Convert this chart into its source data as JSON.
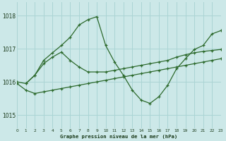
{
  "title": "Graphe pression niveau de la mer (hPa)",
  "bg_color": "#cce8e8",
  "grid_color": "#aad4d4",
  "line_color": "#2d6a2d",
  "xlim": [
    0,
    23
  ],
  "ylim": [
    1014.6,
    1018.4
  ],
  "yticks": [
    1015,
    1016,
    1017,
    1018
  ],
  "xticks": [
    0,
    1,
    2,
    3,
    4,
    5,
    6,
    7,
    8,
    9,
    10,
    11,
    12,
    13,
    14,
    15,
    16,
    17,
    18,
    19,
    20,
    21,
    22,
    23
  ],
  "line1_x": [
    0,
    1,
    2,
    3,
    4,
    5,
    6,
    7,
    8,
    9,
    10,
    11,
    12,
    13,
    14,
    15,
    16,
    17,
    18,
    19,
    20,
    21,
    22,
    23
  ],
  "line1_y": [
    1015.95,
    1015.75,
    1015.65,
    1015.7,
    1015.75,
    1015.8,
    1015.85,
    1015.9,
    1015.95,
    1016.0,
    1016.05,
    1016.1,
    1016.15,
    1016.2,
    1016.25,
    1016.3,
    1016.35,
    1016.4,
    1016.45,
    1016.5,
    1016.55,
    1016.6,
    1016.65,
    1016.7
  ],
  "line2_x": [
    0,
    1,
    2,
    3,
    4,
    5,
    6,
    7,
    8,
    9,
    10,
    11,
    12,
    13,
    14,
    15,
    16,
    17,
    18,
    19,
    20,
    21,
    22,
    23
  ],
  "line2_y": [
    1016.0,
    1015.95,
    1016.2,
    1016.55,
    1016.75,
    1016.9,
    1016.65,
    1016.45,
    1016.3,
    1016.3,
    1016.3,
    1016.35,
    1016.4,
    1016.45,
    1016.5,
    1016.55,
    1016.6,
    1016.65,
    1016.75,
    1016.82,
    1016.88,
    1016.92,
    1016.95,
    1016.98
  ],
  "line3_x": [
    1,
    2,
    3,
    4,
    5,
    6,
    7,
    8,
    9,
    10,
    11,
    12,
    13,
    14,
    15,
    16,
    17,
    18,
    19,
    20,
    21,
    22,
    23
  ],
  "line3_y": [
    1015.95,
    1016.2,
    1016.65,
    1016.88,
    1017.1,
    1017.35,
    1017.72,
    1017.88,
    1017.97,
    1017.1,
    1016.6,
    1016.2,
    1015.75,
    1015.45,
    1015.35,
    1015.55,
    1015.9,
    1016.4,
    1016.7,
    1016.98,
    1017.1,
    1017.45,
    1017.55
  ]
}
